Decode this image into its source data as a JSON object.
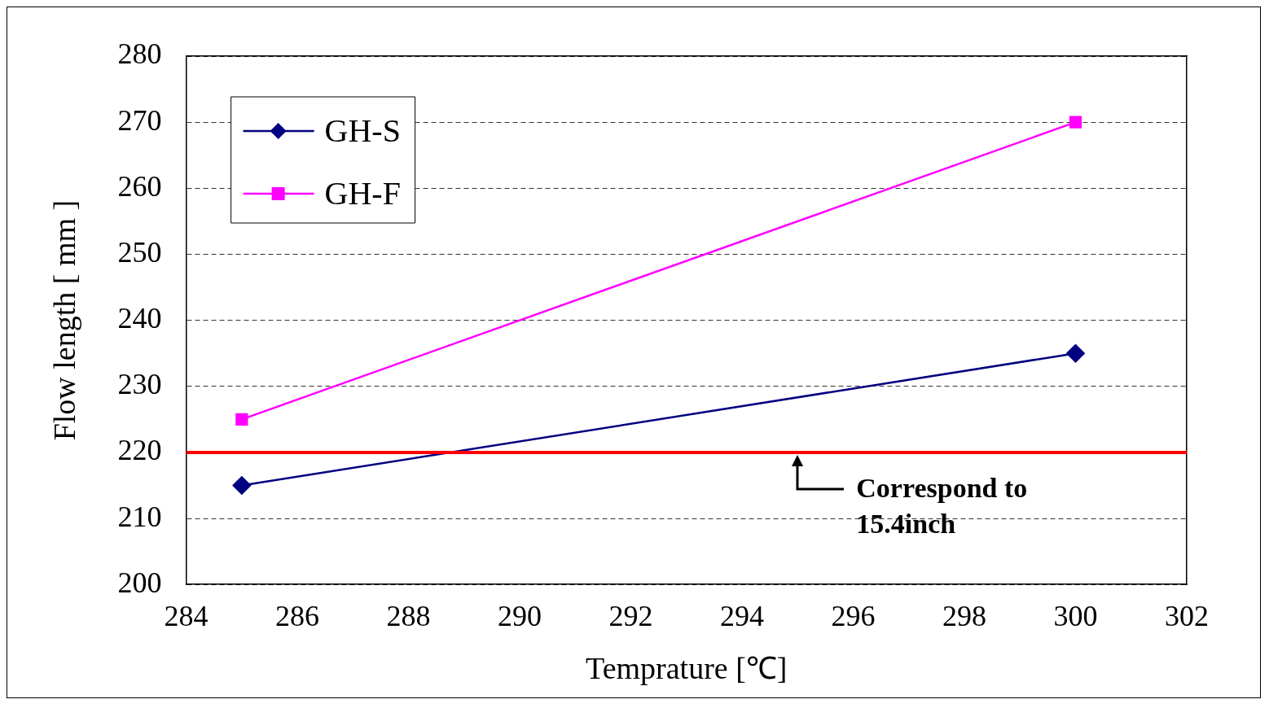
{
  "chart_data": {
    "type": "line",
    "xlabel": "Temprature [℃]",
    "ylabel": "Flow length [ mm ]",
    "x": [
      285,
      300
    ],
    "series": [
      {
        "name": "GH-S",
        "color": "#000080",
        "values": [
          215,
          235
        ],
        "marker": "diamond"
      },
      {
        "name": "GH-F",
        "color": "#ff00ff",
        "values": [
          225,
          270
        ],
        "marker": "square"
      }
    ],
    "xlim": [
      284,
      302
    ],
    "xticks": [
      284,
      286,
      288,
      290,
      292,
      294,
      296,
      298,
      300,
      302
    ],
    "ylim": [
      200,
      280
    ],
    "yticks": [
      200,
      210,
      220,
      230,
      240,
      250,
      260,
      270,
      280
    ],
    "grid": "y",
    "legend": "top left",
    "line_style": "solid",
    "ref_lines": [
      {
        "axis": "y",
        "value": 220,
        "label": null,
        "color": "#ff0000"
      }
    ],
    "annotations": [
      {
        "text": "Correspond to\n15.4inch",
        "x": 295,
        "y": 220
      }
    ]
  }
}
